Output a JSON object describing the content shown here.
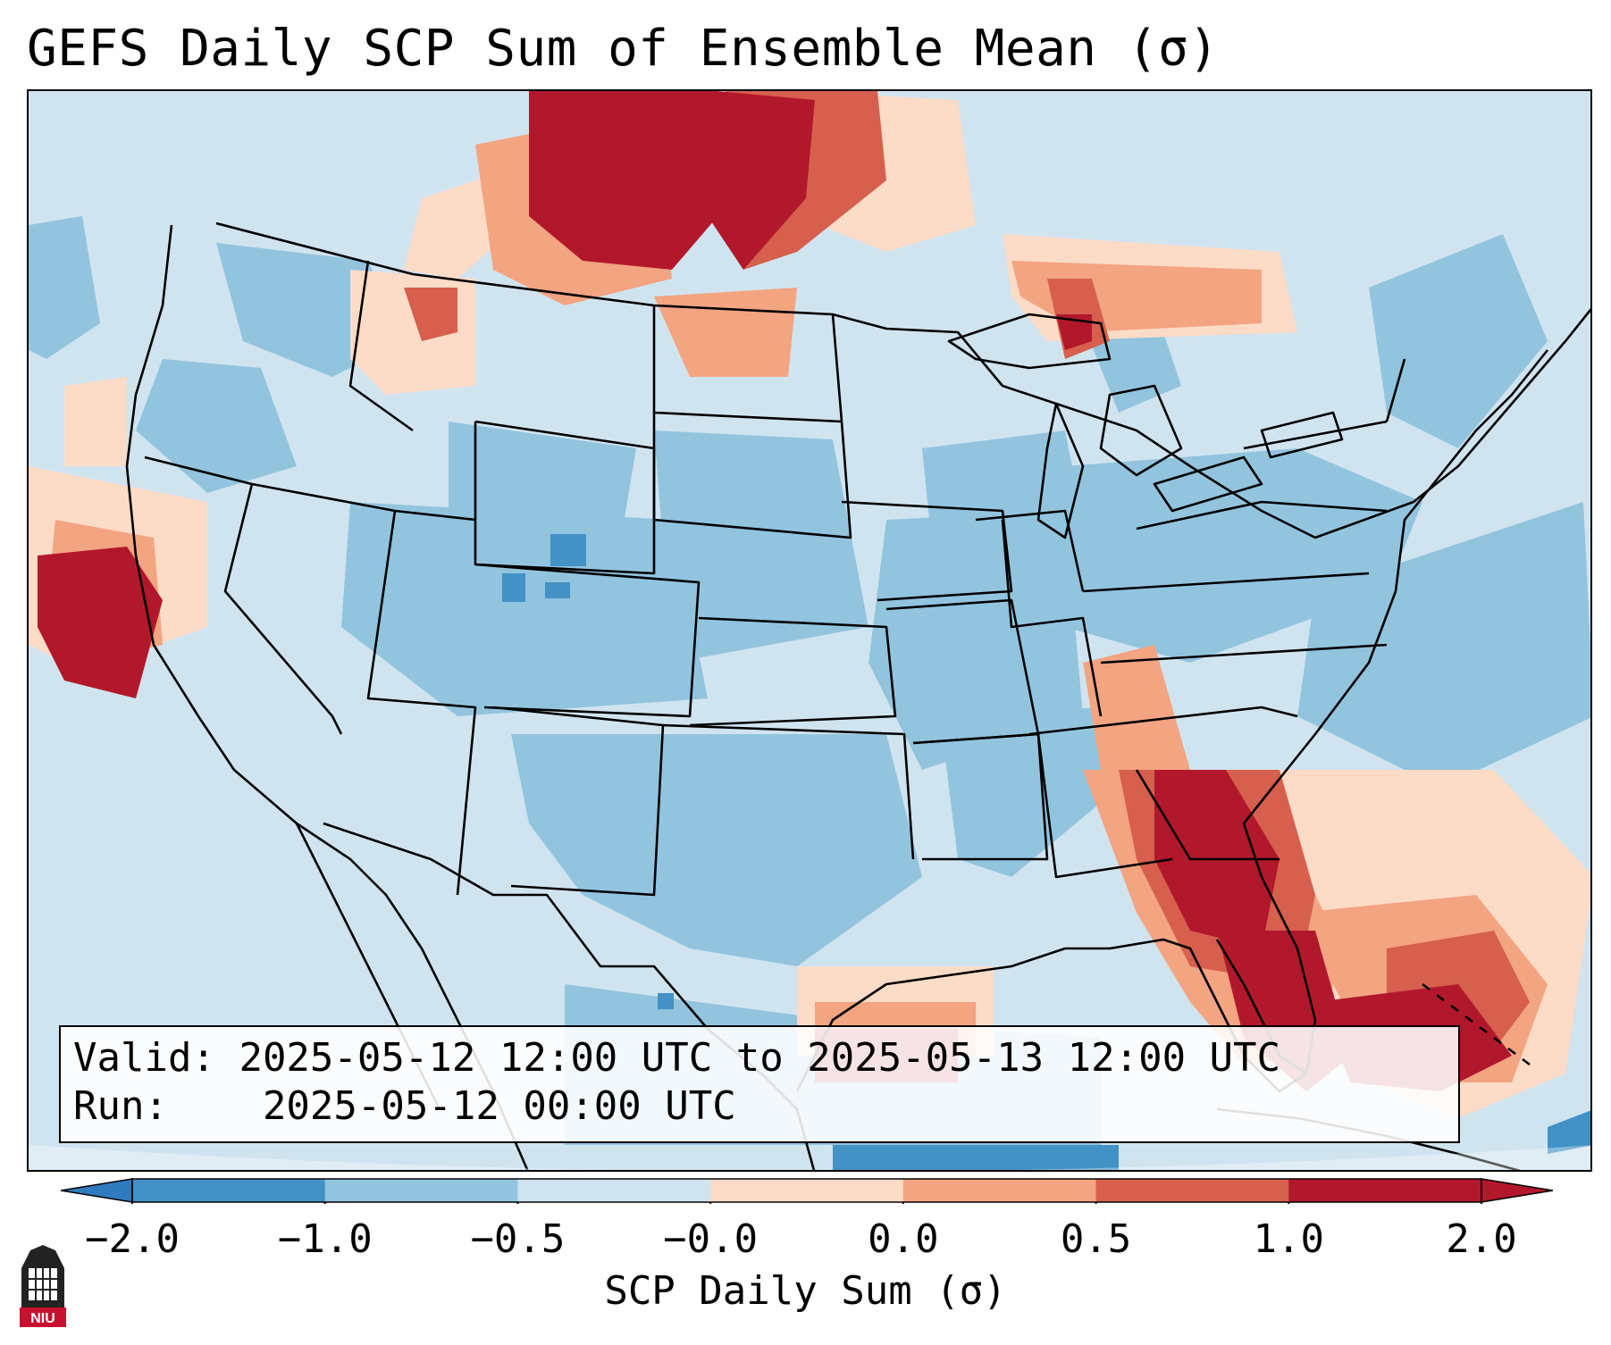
{
  "title": "GEFS Daily SCP Sum of Ensemble Mean (σ)",
  "info_box": {
    "valid_label": "Valid:",
    "valid_value": "2025-05-12 12:00 UTC to 2025-05-13 12:00 UTC",
    "run_label": "Run:",
    "run_value": "2025-05-12 00:00 UTC"
  },
  "colorbar": {
    "label": "SCP Daily Sum (σ)",
    "ticks": [
      "−2.0",
      "−1.0",
      "−0.5",
      "−0.0",
      "0.0",
      "0.5",
      "1.0",
      "2.0"
    ],
    "colors": [
      "#4392c6",
      "#92c4de",
      "#d0e4f0",
      "#fcdbc7",
      "#f3a481",
      "#d6604d",
      "#b2182b"
    ],
    "extend_low_color": "#2f7bbd",
    "extend_high_color": "#b2182b"
  },
  "map": {
    "background_color": "#d0e4f0",
    "highlight_regions": [
      "Northern Plains / southern Canada",
      "Great Lakes / Ontario",
      "Coastal California",
      "Southeast US / Georgia / Florida",
      "Western Gulf of Mexico",
      "Bahamas / Atlantic"
    ]
  },
  "logo": {
    "text": "NIU",
    "icon": "university-seal-icon"
  }
}
